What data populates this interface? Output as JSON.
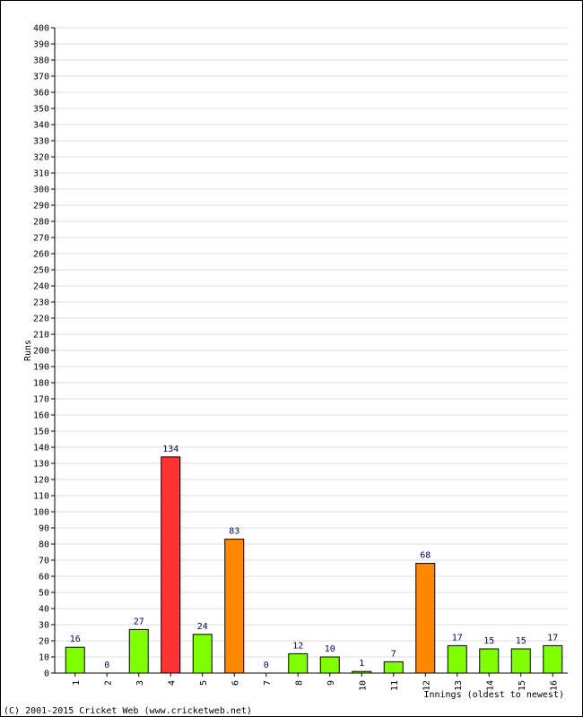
{
  "chart_data": {
    "type": "bar",
    "ylabel": "Runs",
    "xlabel": "Innings (oldest to newest)",
    "ylim": [
      0,
      400
    ],
    "y_tick_step": 10,
    "grid": true,
    "categories": [
      "1",
      "2",
      "3",
      "4",
      "5",
      "6",
      "7",
      "8",
      "9",
      "10",
      "11",
      "12",
      "13",
      "14",
      "15",
      "16"
    ],
    "values": [
      16,
      0,
      27,
      134,
      24,
      83,
      0,
      12,
      10,
      1,
      7,
      68,
      17,
      15,
      15,
      17
    ],
    "data_labels": [
      "16",
      "0",
      "27",
      "134",
      "24",
      "83",
      "0",
      "12",
      "10",
      "1",
      "7",
      "68",
      "17",
      "15",
      "15",
      "17"
    ],
    "bar_colors": [
      "#80ff00",
      "#80ff00",
      "#80ff00",
      "#ff3333",
      "#80ff00",
      "#ff8800",
      "#80ff00",
      "#80ff00",
      "#80ff00",
      "#80ff00",
      "#80ff00",
      "#ff8800",
      "#80ff00",
      "#80ff00",
      "#80ff00",
      "#80ff00"
    ]
  },
  "copyright": "(C) 2001-2015 Cricket Web (www.cricketweb.net)",
  "colors": {
    "grid": "#dddddd",
    "axis": "#000000",
    "bar_outline": "#000000",
    "data_label": "#000080"
  }
}
